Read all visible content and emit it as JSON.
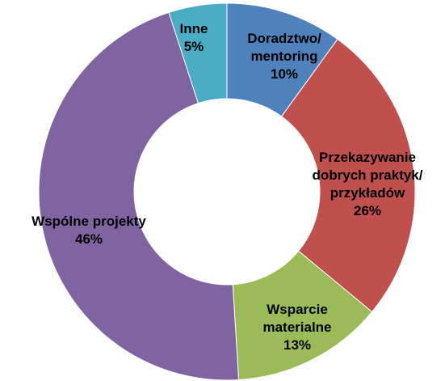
{
  "chart_data": {
    "type": "donut",
    "categories": [
      "Doradztwo/ mentoring",
      "Przekazywanie dobrych praktyk/ przykładów",
      "Wsparcie materialne",
      "Wspólne projekty",
      "Inne"
    ],
    "values": [
      10,
      26,
      13,
      46,
      5
    ],
    "value_labels": [
      "10%",
      "26%",
      "13%",
      "46%",
      "5%"
    ],
    "colors": [
      "#4f81bd",
      "#c0504d",
      "#9bbb59",
      "#8064a2",
      "#4bacc6"
    ]
  }
}
